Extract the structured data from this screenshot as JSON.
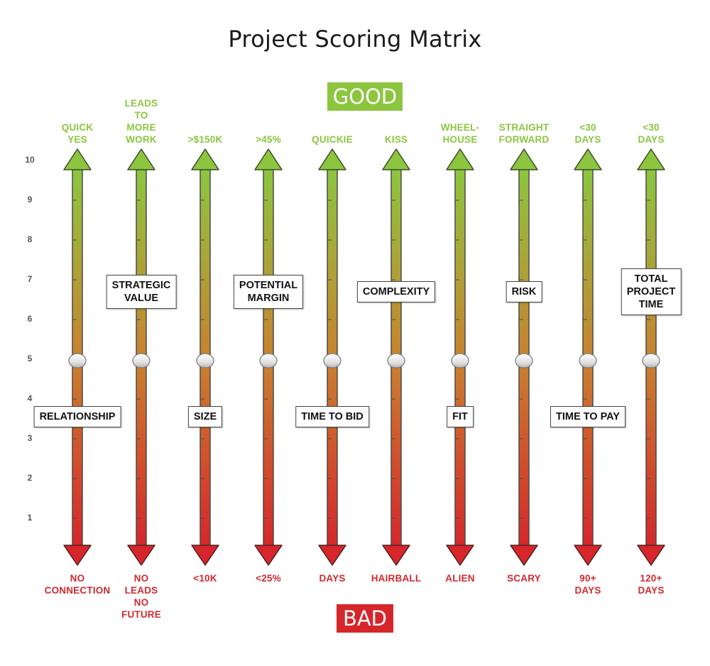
{
  "title": "Project Scoring Matrix",
  "good_label": "GOOD",
  "bad_label": "BAD",
  "scale": {
    "max": 10,
    "ticks": [
      "10",
      "9",
      "8",
      "7",
      "6",
      "5",
      "4",
      "3",
      "2",
      "1"
    ],
    "slider_value": 5
  },
  "colors": {
    "good": "#8cc63f",
    "mid": "#c8822f",
    "bad": "#d6262b"
  },
  "criteria": [
    {
      "name": "RELATIONSHIP",
      "good": "QUICK\nYES",
      "bad": "NO\nCONNECTION",
      "box": "lower"
    },
    {
      "name": "STRATEGIC\nVALUE",
      "good": "LEADS\nTO\nMORE\nWORK",
      "bad": "NO\nLEADS\nNO\nFUTURE",
      "box": "upper"
    },
    {
      "name": "SIZE",
      "good": ">$150K",
      "bad": "<10K",
      "box": "lower"
    },
    {
      "name": "POTENTIAL\nMARGIN",
      "good": ">45%",
      "bad": "<25%",
      "box": "upper"
    },
    {
      "name": "TIME TO BID",
      "good": "QUICKIE",
      "bad": "DAYS",
      "box": "lower"
    },
    {
      "name": "COMPLEXITY",
      "good": "KISS",
      "bad": "HAIRBALL",
      "box": "upper"
    },
    {
      "name": "FIT",
      "good": "WHEEL-\nHOUSE",
      "bad": "ALIEN",
      "box": "lower"
    },
    {
      "name": "RISK",
      "good": "STRAIGHT\nFORWARD",
      "bad": "SCARY",
      "box": "upper"
    },
    {
      "name": "TIME TO PAY",
      "good": "<30\nDAYS",
      "bad": "90+\nDAYS",
      "box": "lower"
    },
    {
      "name": "TOTAL\nPROJECT\nTIME",
      "good": "<30\nDAYS",
      "bad": "120+\nDAYS",
      "box": "upper"
    }
  ]
}
